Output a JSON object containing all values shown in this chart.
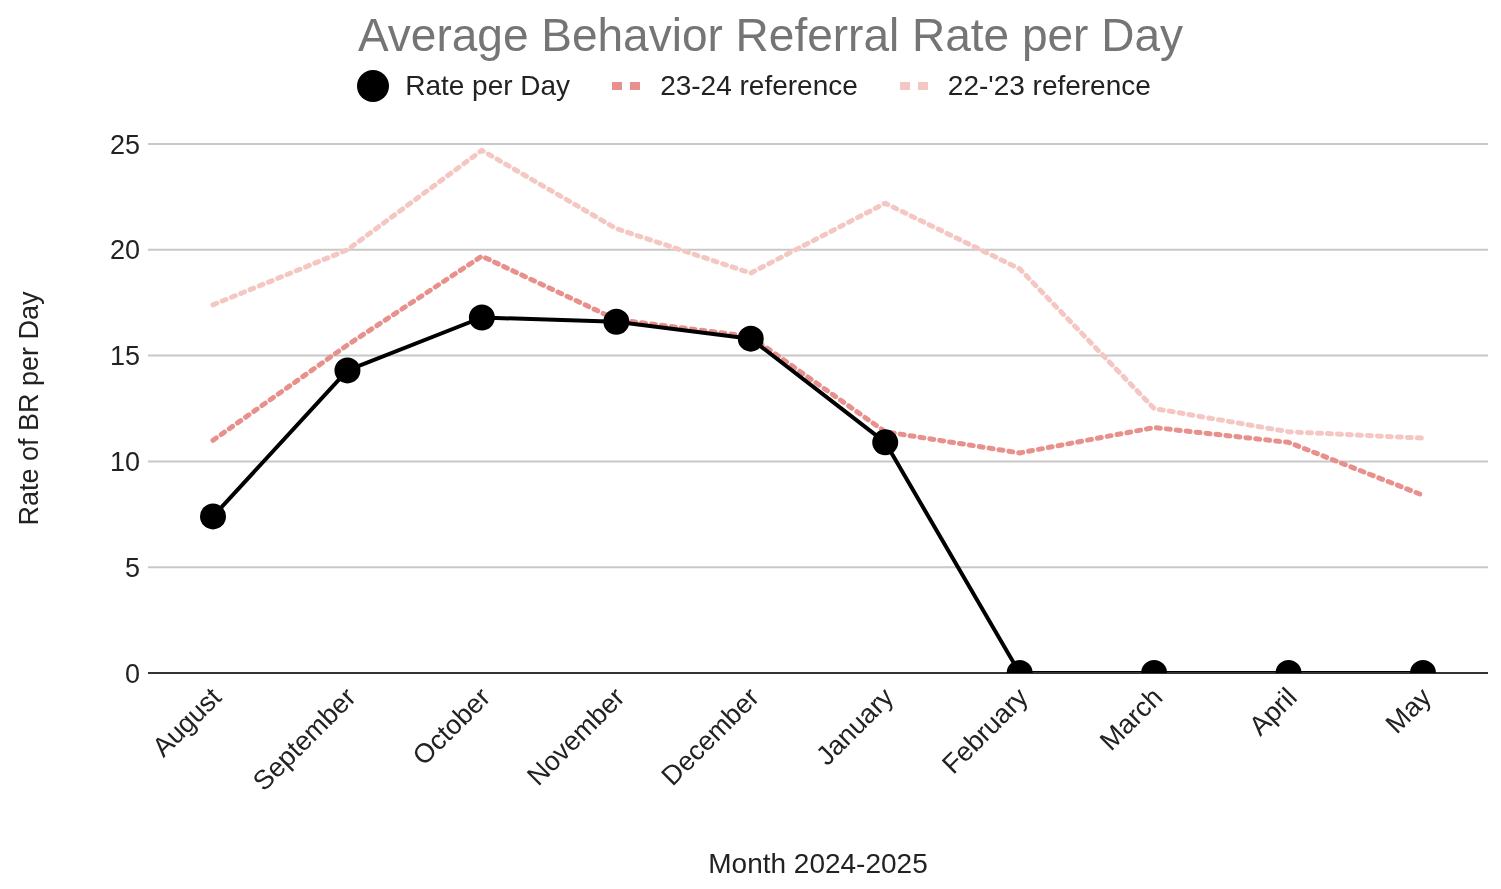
{
  "chart_data": {
    "type": "line",
    "title": "Average Behavior Referral Rate per Day",
    "xlabel": "Month 2024-2025",
    "ylabel": "Rate of BR per Day",
    "categories": [
      "August",
      "September",
      "October",
      "November",
      "December",
      "January",
      "February",
      "March",
      "April",
      "May"
    ],
    "series": [
      {
        "name": "Rate per Day",
        "color": "#000000",
        "marker": "circle",
        "line_style": "solid",
        "values": [
          7.4,
          14.3,
          16.8,
          16.6,
          15.8,
          10.9,
          0,
          0,
          0,
          0
        ]
      },
      {
        "name": "23-24 reference",
        "color": "#e8908c",
        "marker": "none",
        "line_style": "dotted",
        "values": [
          11.0,
          15.5,
          19.7,
          16.7,
          15.9,
          11.4,
          10.4,
          11.6,
          10.9,
          8.4
        ]
      },
      {
        "name": "22-'23 reference",
        "color": "#f4c7c3",
        "marker": "none",
        "line_style": "dotted",
        "values": [
          17.4,
          20.0,
          24.7,
          21.0,
          18.9,
          22.2,
          19.1,
          12.5,
          11.4,
          11.1
        ]
      }
    ],
    "ylim": [
      0,
      25
    ],
    "yticks": [
      0,
      5,
      10,
      15,
      20,
      25
    ],
    "grid": "y",
    "legend": "top"
  }
}
